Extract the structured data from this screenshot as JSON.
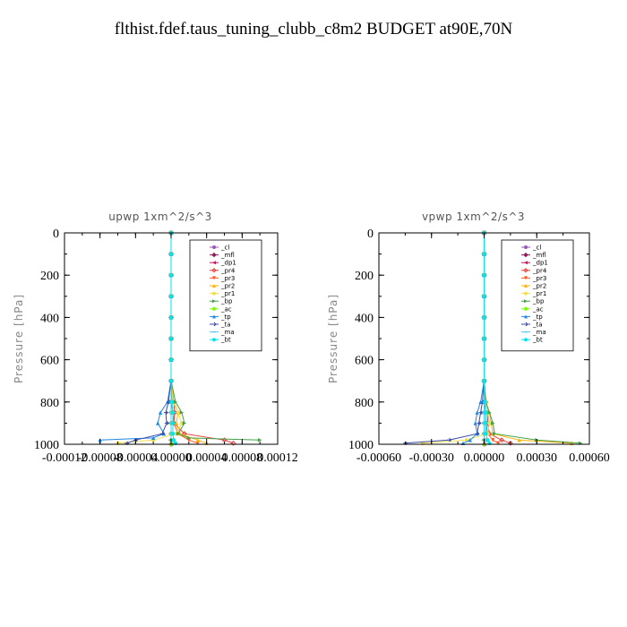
{
  "title": "flthist.fdef.taus_tuning_clubb_c8m2  BUDGET at90E,70N",
  "series_styles": [
    {
      "name": "_cl",
      "color": "#9b59b6",
      "marker": "circle"
    },
    {
      "name": "_mfl",
      "color": "#8b1a5a",
      "marker": "diamond"
    },
    {
      "name": "_dp1",
      "color": "#c2185b",
      "marker": "triangle-left"
    },
    {
      "name": "_pr4",
      "color": "#e53935",
      "marker": "diamond-open"
    },
    {
      "name": "_pr3",
      "color": "#ff5722",
      "marker": "triangle-down"
    },
    {
      "name": "_pr2",
      "color": "#ffb300",
      "marker": "triangle-up"
    },
    {
      "name": "_pr1",
      "color": "#f4e04d",
      "marker": "circle"
    },
    {
      "name": "_bp",
      "color": "#43a047",
      "marker": "triangle-right"
    },
    {
      "name": "_ac",
      "color": "#7cfc00",
      "marker": "circle"
    },
    {
      "name": "_tp",
      "color": "#1e88e5",
      "marker": "triangle-up"
    },
    {
      "name": "_ta",
      "color": "#3949ab",
      "marker": "arrow"
    },
    {
      "name": "_ma",
      "color": "#4fc3f7",
      "marker": "dash"
    },
    {
      "name": "_bt",
      "color": "#00e5ee",
      "marker": "circle"
    }
  ],
  "chart_data": [
    {
      "type": "line",
      "title": "upwp   1xm^2/s^3",
      "ylabel": "Pressure [hPa]",
      "xlabel": "",
      "ylim": [
        1000,
        0
      ],
      "y_inverted": true,
      "xlim": [
        -0.00012,
        0.00012
      ],
      "xticks": [
        -0.00012,
        -8e-05,
        -4e-05,
        0.0,
        4e-05,
        8e-05,
        0.00012
      ],
      "xtick_labels": [
        "-0.00012",
        "-0.00008",
        "-0.00004",
        "0.00000",
        "0.00004",
        "0.00008",
        "0.00012"
      ],
      "yticks": [
        0,
        200,
        400,
        600,
        800,
        1000
      ],
      "ytick_labels": [
        "0",
        "200",
        "400",
        "600",
        "800",
        "1000"
      ],
      "legend_position": "top-right",
      "series": [
        {
          "name": "_cl",
          "x": [
            0,
            0,
            0,
            0,
            0,
            0,
            0,
            0,
            0,
            0,
            0,
            0,
            0,
            0
          ],
          "y": [
            0,
            100,
            200,
            300,
            400,
            500,
            600,
            700,
            800,
            850,
            900,
            950,
            980,
            1000
          ]
        },
        {
          "name": "_mfl",
          "x": [
            0,
            0,
            0,
            0,
            0,
            0,
            0,
            0,
            0,
            0,
            0,
            0,
            0,
            0
          ],
          "y": [
            0,
            100,
            200,
            300,
            400,
            500,
            600,
            700,
            800,
            850,
            900,
            950,
            980,
            1000
          ]
        },
        {
          "name": "_dp1",
          "x": [
            0,
            0,
            0,
            0,
            0,
            0,
            0,
            0,
            0,
            0,
            0,
            0,
            0,
            0
          ],
          "y": [
            0,
            100,
            200,
            300,
            400,
            500,
            600,
            700,
            800,
            850,
            900,
            950,
            980,
            1000
          ]
        },
        {
          "name": "_pr4",
          "x": [
            0,
            0,
            0,
            0,
            0,
            0,
            0,
            0,
            3e-06,
            4e-06,
            3e-06,
            1.5e-05,
            6e-05,
            7e-05
          ],
          "y": [
            0,
            100,
            200,
            300,
            400,
            500,
            600,
            700,
            800,
            850,
            900,
            950,
            980,
            995
          ]
        },
        {
          "name": "_pr3",
          "x": [
            0,
            0,
            0,
            0,
            0,
            0,
            0,
            0,
            0,
            2e-06,
            3e-06,
            8e-06,
            2e-05,
            3e-05
          ],
          "y": [
            0,
            100,
            200,
            300,
            400,
            500,
            600,
            700,
            800,
            850,
            900,
            950,
            980,
            995
          ]
        },
        {
          "name": "_pr2",
          "x": [
            0,
            0,
            0,
            0,
            0,
            0,
            0,
            0,
            3e-06,
            8e-06,
            6e-06,
            1e-05,
            3e-05,
            4e-05
          ],
          "y": [
            0,
            100,
            200,
            300,
            400,
            500,
            600,
            700,
            800,
            850,
            900,
            950,
            980,
            995
          ]
        },
        {
          "name": "_pr1",
          "x": [
            0,
            0,
            0,
            0,
            0,
            0,
            0,
            0,
            2e-06,
            8e-06,
            1.2e-05,
            6e-06,
            -2e-05,
            -6e-05
          ],
          "y": [
            0,
            100,
            200,
            300,
            400,
            500,
            600,
            700,
            800,
            850,
            900,
            950,
            980,
            995
          ]
        },
        {
          "name": "_bp",
          "x": [
            0,
            0,
            0,
            0,
            0,
            0,
            0,
            0,
            5e-06,
            1.2e-05,
            1.5e-05,
            8e-06,
            2e-05,
            0.0001
          ],
          "y": [
            0,
            100,
            200,
            300,
            400,
            500,
            600,
            700,
            800,
            850,
            900,
            950,
            970,
            980
          ]
        },
        {
          "name": "_ac",
          "x": [
            0,
            0,
            0,
            0,
            0,
            0,
            0,
            0,
            0,
            0,
            0,
            0,
            0,
            0
          ],
          "y": [
            0,
            100,
            200,
            300,
            400,
            500,
            600,
            700,
            800,
            850,
            900,
            950,
            980,
            1000
          ]
        },
        {
          "name": "_tp",
          "x": [
            0,
            0,
            0,
            0,
            0,
            0,
            0,
            0,
            -4e-06,
            -1.2e-05,
            -1.5e-05,
            -8e-06,
            -2e-05,
            -8e-05
          ],
          "y": [
            0,
            100,
            200,
            300,
            400,
            500,
            600,
            700,
            800,
            850,
            900,
            950,
            970,
            980
          ]
        },
        {
          "name": "_ta",
          "x": [
            0,
            0,
            0,
            0,
            0,
            0,
            0,
            0,
            -3e-06,
            -6e-06,
            -5e-06,
            -1e-05,
            -4e-05,
            -5e-05
          ],
          "y": [
            0,
            100,
            200,
            300,
            400,
            500,
            600,
            700,
            800,
            850,
            900,
            950,
            980,
            995
          ]
        },
        {
          "name": "_ma",
          "x": [
            0,
            0,
            0,
            0,
            0,
            0,
            0,
            0,
            0,
            0,
            0,
            0,
            0,
            0
          ],
          "y": [
            0,
            100,
            200,
            300,
            400,
            500,
            600,
            700,
            800,
            850,
            900,
            950,
            980,
            1000
          ]
        },
        {
          "name": "_bt",
          "x": [
            0,
            0,
            0,
            0,
            0,
            0,
            0,
            0,
            1e-06,
            2e-06,
            2e-06,
            2e-06,
            3e-06,
            5e-06
          ],
          "y": [
            0,
            100,
            200,
            300,
            400,
            500,
            600,
            700,
            800,
            850,
            900,
            950,
            980,
            995
          ]
        }
      ]
    },
    {
      "type": "line",
      "title": "vpwp   1xm^2/s^3",
      "ylabel": "Pressure [hPa]",
      "xlabel": "",
      "ylim": [
        1000,
        0
      ],
      "y_inverted": true,
      "xlim": [
        -0.0006,
        0.0006
      ],
      "xticks": [
        -0.0006,
        -0.0003,
        0.0,
        0.0003,
        0.0006
      ],
      "xtick_labels": [
        "-0.00060",
        "-0.00030",
        "0.00000",
        "0.00030",
        "0.00060"
      ],
      "yticks": [
        0,
        200,
        400,
        600,
        800,
        1000
      ],
      "ytick_labels": [
        "0",
        "200",
        "400",
        "600",
        "800",
        "1000"
      ],
      "legend_position": "top-right",
      "series": [
        {
          "name": "_cl",
          "x": [
            0,
            0,
            0,
            0,
            0,
            0,
            0,
            0,
            0,
            0,
            0,
            0,
            0,
            0
          ],
          "y": [
            0,
            100,
            200,
            300,
            400,
            500,
            600,
            700,
            800,
            850,
            900,
            950,
            980,
            1000
          ]
        },
        {
          "name": "_mfl",
          "x": [
            0,
            0,
            0,
            0,
            0,
            0,
            0,
            0,
            0,
            0,
            0,
            0,
            0,
            0
          ],
          "y": [
            0,
            100,
            200,
            300,
            400,
            500,
            600,
            700,
            800,
            850,
            900,
            950,
            980,
            1000
          ]
        },
        {
          "name": "_dp1",
          "x": [
            0,
            0,
            0,
            0,
            0,
            0,
            0,
            0,
            0,
            0,
            0,
            0,
            0,
            0
          ],
          "y": [
            0,
            100,
            200,
            300,
            400,
            500,
            600,
            700,
            800,
            850,
            900,
            950,
            980,
            1000
          ]
        },
        {
          "name": "_pr4",
          "x": [
            0,
            0,
            0,
            0,
            0,
            0,
            0,
            0,
            1e-05,
            2e-05,
            2e-05,
            3e-05,
            0.0001,
            0.00015
          ],
          "y": [
            0,
            100,
            200,
            300,
            400,
            500,
            600,
            700,
            800,
            850,
            900,
            950,
            980,
            995
          ]
        },
        {
          "name": "_pr3",
          "x": [
            0,
            0,
            0,
            0,
            0,
            0,
            0,
            0,
            0,
            1e-05,
            1e-05,
            2e-05,
            5e-05,
            8e-05
          ],
          "y": [
            0,
            100,
            200,
            300,
            400,
            500,
            600,
            700,
            800,
            850,
            900,
            950,
            980,
            995
          ]
        },
        {
          "name": "_pr2",
          "x": [
            0,
            0,
            0,
            0,
            0,
            0,
            0,
            0,
            1e-05,
            3e-05,
            4e-05,
            5e-05,
            0.0002,
            0.0005
          ],
          "y": [
            0,
            100,
            200,
            300,
            400,
            500,
            600,
            700,
            800,
            850,
            900,
            950,
            980,
            995
          ]
        },
        {
          "name": "_pr1",
          "x": [
            0,
            0,
            0,
            0,
            0,
            0,
            0,
            0,
            1e-05,
            2e-05,
            3e-05,
            2e-05,
            -0.0001,
            -0.00035
          ],
          "y": [
            0,
            100,
            200,
            300,
            400,
            500,
            600,
            700,
            800,
            850,
            900,
            950,
            980,
            995
          ]
        },
        {
          "name": "_bp",
          "x": [
            0,
            0,
            0,
            0,
            0,
            0,
            0,
            0,
            1e-05,
            3e-05,
            5e-05,
            6e-05,
            0.0003,
            0.00055
          ],
          "y": [
            0,
            100,
            200,
            300,
            400,
            500,
            600,
            700,
            800,
            850,
            900,
            950,
            980,
            995
          ]
        },
        {
          "name": "_ac",
          "x": [
            0,
            0,
            0,
            0,
            0,
            0,
            0,
            0,
            0,
            0,
            0,
            0,
            0,
            0
          ],
          "y": [
            0,
            100,
            200,
            300,
            400,
            500,
            600,
            700,
            800,
            850,
            900,
            950,
            980,
            1000
          ]
        },
        {
          "name": "_tp",
          "x": [
            0,
            0,
            0,
            0,
            0,
            0,
            0,
            0,
            -2e-05,
            -4e-05,
            -5e-05,
            -4e-05,
            -8e-05,
            -0.00012
          ],
          "y": [
            0,
            100,
            200,
            300,
            400,
            500,
            600,
            700,
            800,
            850,
            900,
            950,
            980,
            995
          ]
        },
        {
          "name": "_ta",
          "x": [
            0,
            0,
            0,
            0,
            0,
            0,
            0,
            0,
            -1e-05,
            -2e-05,
            -3e-05,
            -4e-05,
            -0.0002,
            -0.00045
          ],
          "y": [
            0,
            100,
            200,
            300,
            400,
            500,
            600,
            700,
            800,
            850,
            900,
            950,
            980,
            995
          ]
        },
        {
          "name": "_ma",
          "x": [
            0,
            0,
            0,
            0,
            0,
            0,
            0,
            0,
            0,
            0,
            0,
            0,
            0,
            0
          ],
          "y": [
            0,
            100,
            200,
            300,
            400,
            500,
            600,
            700,
            800,
            850,
            900,
            950,
            980,
            1000
          ]
        },
        {
          "name": "_bt",
          "x": [
            0,
            0,
            0,
            0,
            0,
            0,
            0,
            0,
            5e-06,
            1e-05,
            1e-05,
            1e-05,
            2e-05,
            3e-05
          ],
          "y": [
            0,
            100,
            200,
            300,
            400,
            500,
            600,
            700,
            800,
            850,
            900,
            950,
            980,
            995
          ]
        }
      ]
    }
  ]
}
